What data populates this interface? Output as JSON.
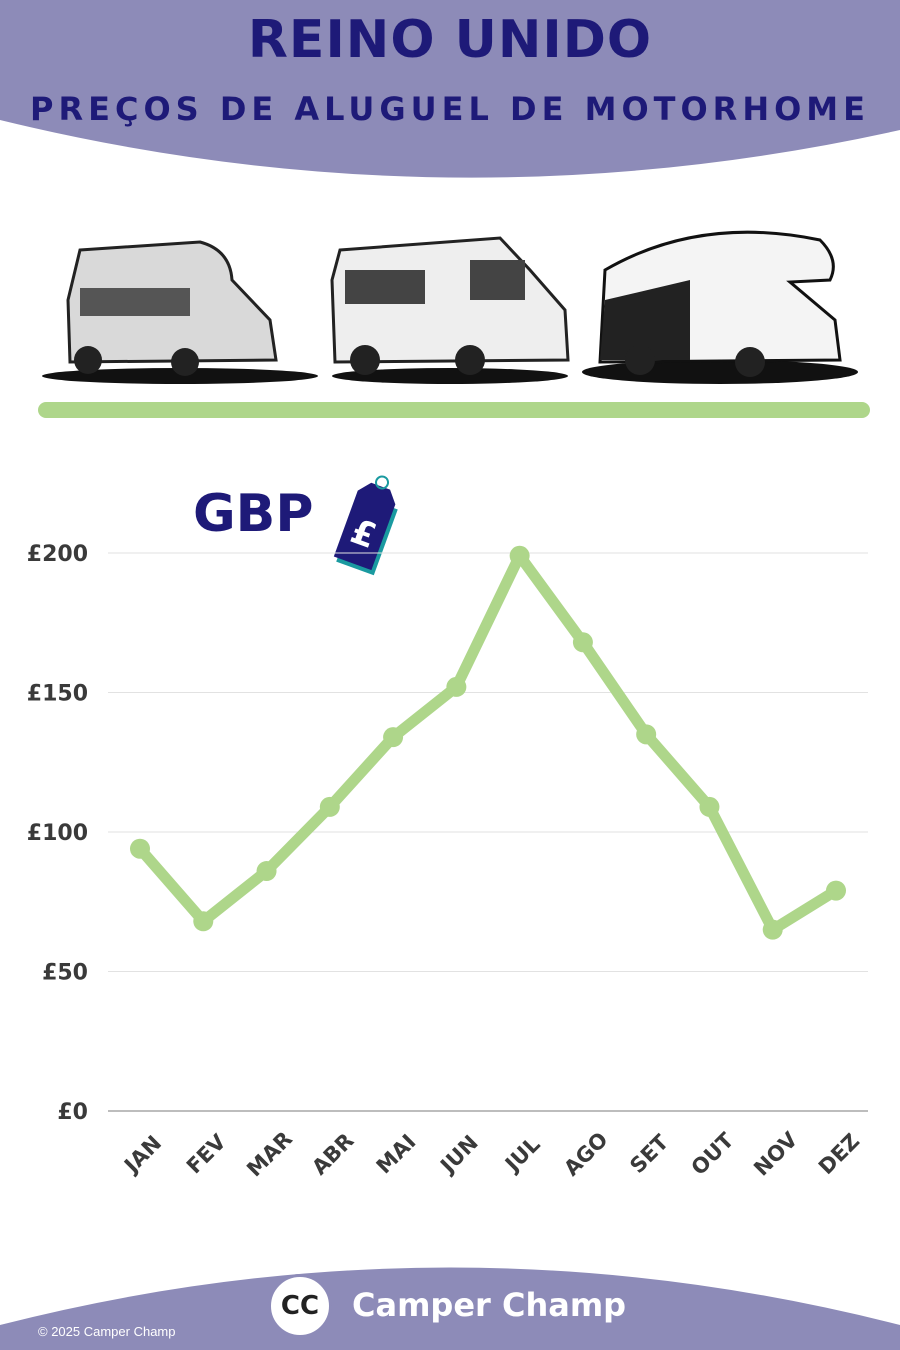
{
  "header": {
    "title": "REINO UNIDO",
    "subtitle": "PREÇOS DE ALUGUEL DE MOTORHOME"
  },
  "currency": {
    "label": "GBP",
    "tag_symbol": "£",
    "tag_icon": "price-tag-icon"
  },
  "colors": {
    "band": "#8d8bb8",
    "title": "#1e1a78",
    "line": "#aed68a",
    "divider": "#aed68a",
    "grid": "#e2e2e2",
    "tick_text": "#3a3a3a"
  },
  "chart_data": {
    "type": "line",
    "title": "",
    "xlabel": "",
    "ylabel": "",
    "categories": [
      "JAN",
      "FEV",
      "MAR",
      "ABR",
      "MAI",
      "JUN",
      "JUL",
      "AGO",
      "SET",
      "OUT",
      "NOV",
      "DEZ"
    ],
    "values": [
      94,
      68,
      86,
      109,
      134,
      152,
      199,
      168,
      135,
      109,
      65,
      79
    ],
    "ylim": [
      0,
      200
    ],
    "yticks": [
      0,
      50,
      100,
      150,
      200
    ],
    "ytick_labels": [
      "£0",
      "£50",
      "£100",
      "£150",
      "£200"
    ],
    "grid": true,
    "legend": "none"
  },
  "footer": {
    "brand": "Camper Champ",
    "logo_text": "CC",
    "copyright": "© 2025 Camper Champ"
  }
}
